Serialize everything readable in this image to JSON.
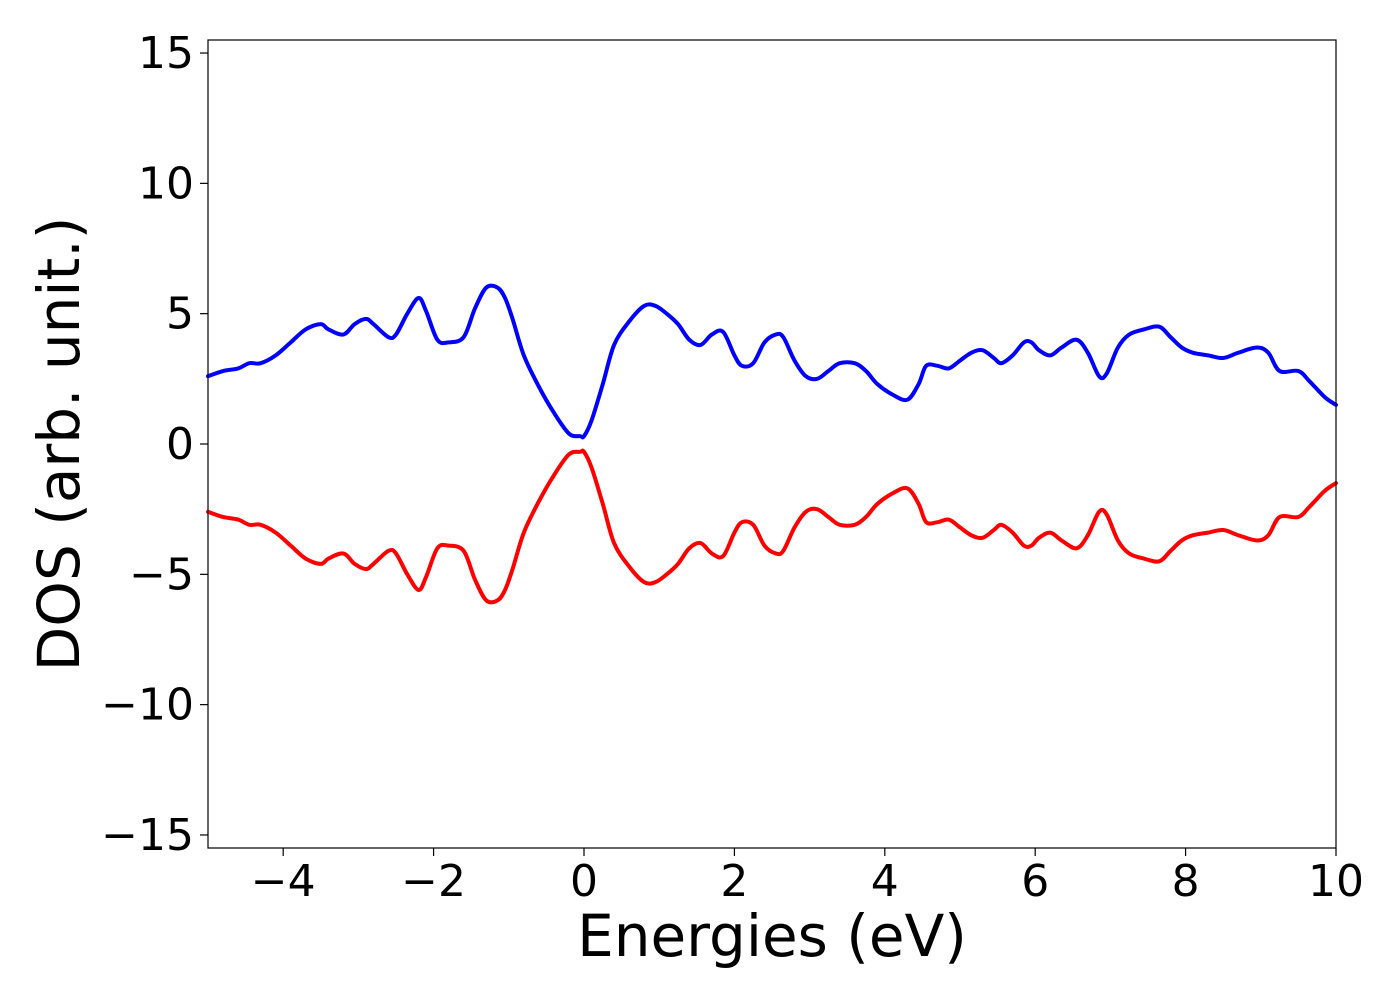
{
  "chart_data": {
    "type": "line",
    "title": "",
    "xlabel": "Energies (eV)",
    "ylabel": "DOS (arb. unit.)",
    "xlim": [
      -5,
      10
    ],
    "ylim": [
      -15.5,
      15.5
    ],
    "grid": false,
    "legend": "none",
    "x_ticks": [
      -4,
      -2,
      0,
      2,
      4,
      6,
      8,
      10
    ],
    "x_tick_labels": [
      "−4",
      "−2",
      "0",
      "2",
      "4",
      "6",
      "8",
      "10"
    ],
    "y_ticks": [
      15,
      10,
      5,
      0,
      -5,
      -10,
      -15
    ],
    "y_tick_labels": [
      "15",
      "10",
      "5",
      "0",
      "−5",
      "−10",
      "−15"
    ],
    "series": [
      {
        "color": "#0000ff",
        "x": [
          -5.0,
          -4.8,
          -4.6,
          -4.45,
          -4.3,
          -4.1,
          -3.9,
          -3.7,
          -3.5,
          -3.4,
          -3.2,
          -3.05,
          -2.9,
          -2.8,
          -2.6,
          -2.5,
          -2.35,
          -2.2,
          -2.1,
          -1.95,
          -1.8,
          -1.6,
          -1.45,
          -1.3,
          -1.15,
          -1.05,
          -0.95,
          -0.8,
          -0.6,
          -0.4,
          -0.2,
          -0.05,
          0.0,
          0.1,
          0.25,
          0.4,
          0.6,
          0.8,
          0.95,
          1.1,
          1.25,
          1.4,
          1.55,
          1.7,
          1.85,
          2.0,
          2.1,
          2.25,
          2.4,
          2.55,
          2.65,
          2.8,
          2.95,
          3.1,
          3.25,
          3.4,
          3.6,
          3.75,
          3.9,
          4.1,
          4.3,
          4.45,
          4.55,
          4.7,
          4.85,
          5.0,
          5.15,
          5.3,
          5.45,
          5.55,
          5.7,
          5.85,
          5.95,
          6.05,
          6.2,
          6.35,
          6.55,
          6.7,
          6.85,
          6.95,
          7.1,
          7.25,
          7.45,
          7.65,
          7.8,
          7.95,
          8.1,
          8.3,
          8.5,
          8.7,
          8.95,
          9.1,
          9.25,
          9.5,
          9.65,
          9.85,
          10.0
        ],
        "y": [
          2.6,
          2.8,
          2.9,
          3.1,
          3.1,
          3.4,
          3.9,
          4.4,
          4.6,
          4.4,
          4.2,
          4.6,
          4.8,
          4.6,
          4.1,
          4.2,
          5.0,
          5.6,
          5.1,
          4.0,
          3.9,
          4.1,
          5.2,
          6.0,
          6.0,
          5.6,
          4.8,
          3.4,
          2.2,
          1.2,
          0.4,
          0.3,
          0.3,
          0.9,
          2.3,
          3.8,
          4.7,
          5.3,
          5.3,
          5.0,
          4.6,
          4.0,
          3.8,
          4.2,
          4.3,
          3.4,
          3.0,
          3.1,
          3.9,
          4.2,
          4.1,
          3.2,
          2.6,
          2.5,
          2.8,
          3.1,
          3.1,
          2.8,
          2.3,
          1.9,
          1.7,
          2.3,
          3.0,
          3.0,
          2.9,
          3.2,
          3.5,
          3.6,
          3.3,
          3.1,
          3.4,
          3.9,
          3.9,
          3.6,
          3.4,
          3.7,
          4.0,
          3.5,
          2.6,
          2.7,
          3.7,
          4.2,
          4.4,
          4.5,
          4.1,
          3.7,
          3.5,
          3.4,
          3.3,
          3.5,
          3.7,
          3.5,
          2.8,
          2.8,
          2.4,
          1.8,
          1.5
        ]
      },
      {
        "color": "#ff0000",
        "x": [
          -5.0,
          -4.8,
          -4.6,
          -4.45,
          -4.3,
          -4.1,
          -3.9,
          -3.7,
          -3.5,
          -3.4,
          -3.2,
          -3.05,
          -2.9,
          -2.8,
          -2.6,
          -2.5,
          -2.35,
          -2.2,
          -2.1,
          -1.95,
          -1.8,
          -1.6,
          -1.45,
          -1.3,
          -1.15,
          -1.05,
          -0.95,
          -0.8,
          -0.6,
          -0.4,
          -0.2,
          -0.05,
          0.0,
          0.1,
          0.25,
          0.4,
          0.6,
          0.8,
          0.95,
          1.1,
          1.25,
          1.4,
          1.55,
          1.7,
          1.85,
          2.0,
          2.1,
          2.25,
          2.4,
          2.55,
          2.65,
          2.8,
          2.95,
          3.1,
          3.25,
          3.4,
          3.6,
          3.75,
          3.9,
          4.1,
          4.3,
          4.45,
          4.55,
          4.7,
          4.85,
          5.0,
          5.15,
          5.3,
          5.45,
          5.55,
          5.7,
          5.85,
          5.95,
          6.05,
          6.2,
          6.35,
          6.55,
          6.7,
          6.85,
          6.95,
          7.1,
          7.25,
          7.45,
          7.65,
          7.8,
          7.95,
          8.1,
          8.3,
          8.5,
          8.7,
          8.95,
          9.1,
          9.25,
          9.5,
          9.65,
          9.85,
          10.0
        ],
        "y": [
          -2.6,
          -2.8,
          -2.9,
          -3.1,
          -3.1,
          -3.4,
          -3.9,
          -4.4,
          -4.6,
          -4.4,
          -4.2,
          -4.6,
          -4.8,
          -4.6,
          -4.1,
          -4.2,
          -5.0,
          -5.6,
          -5.1,
          -4.0,
          -3.9,
          -4.1,
          -5.2,
          -6.0,
          -6.0,
          -5.6,
          -4.8,
          -3.4,
          -2.2,
          -1.2,
          -0.4,
          -0.3,
          -0.3,
          -0.9,
          -2.3,
          -3.8,
          -4.7,
          -5.3,
          -5.3,
          -5.0,
          -4.6,
          -4.0,
          -3.8,
          -4.2,
          -4.3,
          -3.4,
          -3.0,
          -3.1,
          -3.9,
          -4.2,
          -4.1,
          -3.2,
          -2.6,
          -2.5,
          -2.8,
          -3.1,
          -3.1,
          -2.8,
          -2.3,
          -1.9,
          -1.7,
          -2.3,
          -3.0,
          -3.0,
          -2.9,
          -3.2,
          -3.5,
          -3.6,
          -3.3,
          -3.1,
          -3.4,
          -3.9,
          -3.9,
          -3.6,
          -3.4,
          -3.7,
          -4.0,
          -3.5,
          -2.6,
          -2.7,
          -3.7,
          -4.2,
          -4.4,
          -4.5,
          -4.1,
          -3.7,
          -3.5,
          -3.4,
          -3.3,
          -3.5,
          -3.7,
          -3.5,
          -2.8,
          -2.8,
          -2.4,
          -1.8,
          -1.5
        ]
      }
    ]
  }
}
